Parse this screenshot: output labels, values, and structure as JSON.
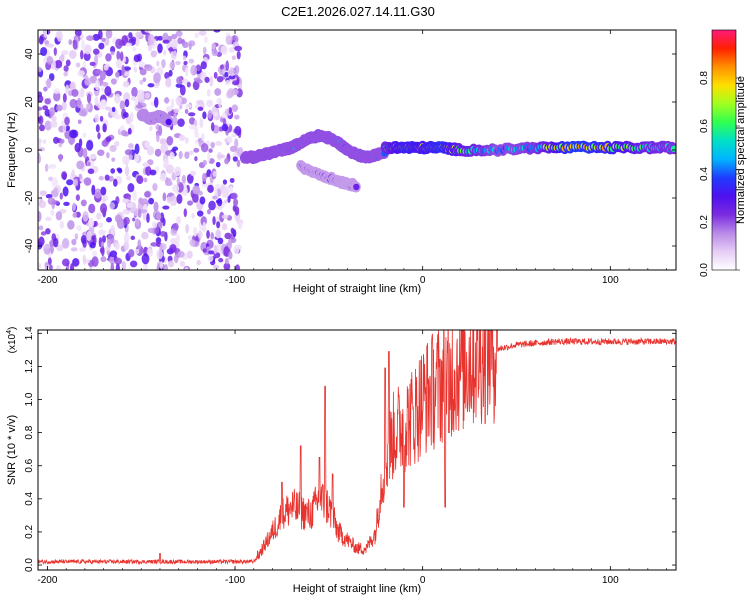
{
  "title": "C2E1.2026.027.14.11.G30",
  "colors": {
    "snr_line": "#e8322d",
    "axis": "#000000",
    "background": "#ffffff"
  },
  "chart_data": [
    {
      "type": "heatmap",
      "xlabel": "Height of straight line (km)",
      "ylabel": "Frequency (Hz)",
      "xlim": [
        -205,
        135
      ],
      "ylim": [
        -50,
        50
      ],
      "xticks": [
        -200,
        -100,
        0,
        100
      ],
      "yticks": [
        -40,
        -20,
        0,
        20,
        40
      ],
      "colorbar": {
        "label": "Normalized spectral amplitude",
        "range": [
          0,
          1
        ],
        "ticks": [
          0.0,
          0.2,
          0.4,
          0.6,
          0.8
        ],
        "colormap": [
          "#ffffff",
          "#e6cdf5",
          "#b98ae8",
          "#7b2ce0",
          "#4f10f0",
          "#1f3cff",
          "#00b4ff",
          "#00e0c8",
          "#30ff50",
          "#a0ff20",
          "#ffe000",
          "#ff9000",
          "#ff2000",
          "#ff1a7a"
        ]
      },
      "noise_region": {
        "x_range": [
          -205,
          -97
        ],
        "level": 0.15
      },
      "features": [
        {
          "x": [
            -95,
            -90,
            -85,
            -80,
            -75,
            -70,
            -65,
            -60,
            -55,
            -50,
            -45,
            -40,
            -35,
            -30,
            -25,
            -20
          ],
          "y": [
            -3,
            -3,
            -2,
            -1,
            0,
            1,
            3,
            5,
            6,
            5,
            3,
            0,
            -2,
            -3,
            -2,
            -1
          ],
          "amplitude": 0.45
        },
        {
          "x": [
            -20,
            -10,
            0,
            10,
            20,
            40,
            60,
            80,
            100,
            120,
            135
          ],
          "y": [
            1,
            1,
            1,
            1,
            0,
            0,
            1,
            1,
            1,
            1,
            1
          ],
          "amplitude": [
            0.55,
            0.75,
            0.7,
            0.8,
            0.6,
            0.45,
            0.5,
            0.85,
            0.75,
            0.55,
            0.5
          ]
        },
        {
          "x": [
            -65,
            -55,
            -45,
            -40,
            -35
          ],
          "y": [
            -7,
            -10,
            -13,
            -14,
            -15
          ],
          "amplitude": 0.3
        },
        {
          "x": [
            -150,
            -145,
            -140,
            -135
          ],
          "y": [
            15,
            13,
            14,
            12
          ],
          "amplitude": 0.35
        }
      ]
    },
    {
      "type": "line",
      "xlabel": "Height of straight line (km)",
      "ylabel": "SNR (10 * v/v)",
      "y_multiplier": "(x10^4)",
      "y_multiplier_base": "(x10",
      "y_multiplier_exp": "4",
      "y_multiplier_close": ")",
      "xlim": [
        -205,
        135
      ],
      "ylim": [
        -0.03,
        1.42
      ],
      "xticks": [
        -200,
        -100,
        0,
        100
      ],
      "yticks": [
        0.0,
        0.2,
        0.4,
        0.6,
        0.8,
        1.0,
        1.2,
        1.4
      ],
      "series": [
        {
          "name": "SNR",
          "envelope_x": [
            -205,
            -150,
            -140,
            -100,
            -90,
            -88,
            -80,
            -75,
            -70,
            -60,
            -55,
            -50,
            -45,
            -40,
            -35,
            -30,
            -25,
            -22,
            -20,
            -18,
            -15,
            -10,
            -5,
            0,
            10,
            20,
            30,
            50,
            70,
            100,
            135
          ],
          "envelope_y": [
            0.02,
            0.02,
            0.02,
            0.02,
            0.02,
            0.05,
            0.2,
            0.3,
            0.35,
            0.3,
            0.4,
            0.35,
            0.2,
            0.15,
            0.1,
            0.1,
            0.2,
            0.5,
            0.6,
            0.7,
            0.8,
            0.85,
            0.9,
            1.0,
            1.1,
            1.2,
            1.28,
            1.33,
            1.35,
            1.35,
            1.35
          ],
          "spikes": [
            {
              "x": -140,
              "y": 0.07
            },
            {
              "x": -75,
              "y": 0.5
            },
            {
              "x": -65,
              "y": 0.72
            },
            {
              "x": -55,
              "y": 0.65
            },
            {
              "x": -52,
              "y": 1.08
            },
            {
              "x": -48,
              "y": 0.55
            },
            {
              "x": -18,
              "y": 1.29
            },
            {
              "x": -20,
              "y": 1.19
            },
            {
              "x": -10,
              "y": 0.35
            },
            {
              "x": 12,
              "y": 0.35
            },
            {
              "x": 14,
              "y": 0.8
            }
          ]
        }
      ]
    }
  ]
}
